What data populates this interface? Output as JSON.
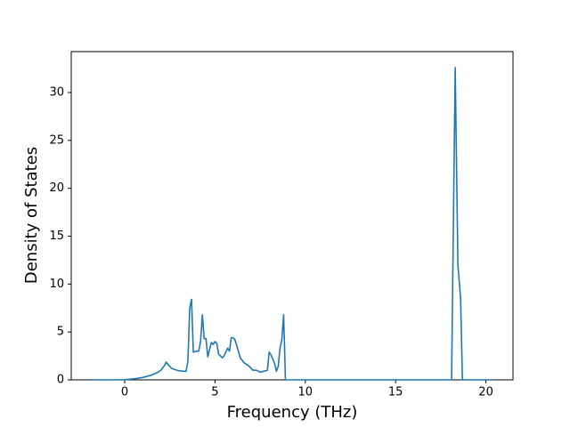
{
  "chart_data": {
    "type": "line",
    "x_label": "Frequency (THz)",
    "y_label": "Density of States",
    "x": [
      -1.85,
      -0.5,
      0,
      0.5,
      1.0,
      1.5,
      1.8,
      2.0,
      2.2,
      2.3,
      2.4,
      2.6,
      2.9,
      3.2,
      3.4,
      3.5,
      3.6,
      3.7,
      3.8,
      4.0,
      4.1,
      4.2,
      4.3,
      4.4,
      4.5,
      4.6,
      4.7,
      4.8,
      4.9,
      5.0,
      5.1,
      5.2,
      5.4,
      5.5,
      5.7,
      5.8,
      5.9,
      6.0,
      6.1,
      6.2,
      6.4,
      6.6,
      6.9,
      7.1,
      7.3,
      7.5,
      7.7,
      7.9,
      8.0,
      8.1,
      8.3,
      8.4,
      8.5,
      8.6,
      8.7,
      8.8,
      8.9,
      18.1,
      18.3,
      18.45,
      18.6,
      18.7,
      20.4
    ],
    "series": [
      {
        "color": "#1f77b4",
        "values": [
          0,
          0,
          0.02,
          0.1,
          0.25,
          0.5,
          0.75,
          1.0,
          1.5,
          1.85,
          1.6,
          1.2,
          1.0,
          0.9,
          0.9,
          2.0,
          7.5,
          8.4,
          2.9,
          3.0,
          3.0,
          4.0,
          6.8,
          4.3,
          4.3,
          2.4,
          3.2,
          3.9,
          3.7,
          4.0,
          3.8,
          2.7,
          2.3,
          2.5,
          3.3,
          3.0,
          4.4,
          4.4,
          4.2,
          3.6,
          2.3,
          1.8,
          1.4,
          1.0,
          1.0,
          0.8,
          0.9,
          1.0,
          2.9,
          2.6,
          1.7,
          0.9,
          1.4,
          3.3,
          4.2,
          6.8,
          0,
          0,
          32.6,
          12,
          8.5,
          0,
          0
        ]
      }
    ],
    "xlim": [
      -2.96,
      21.5
    ],
    "ylim": [
      0,
      34.27
    ],
    "xticks": [
      0,
      5,
      10,
      15,
      20
    ],
    "yticks": [
      0,
      5,
      10,
      15,
      20,
      25,
      30
    ]
  }
}
